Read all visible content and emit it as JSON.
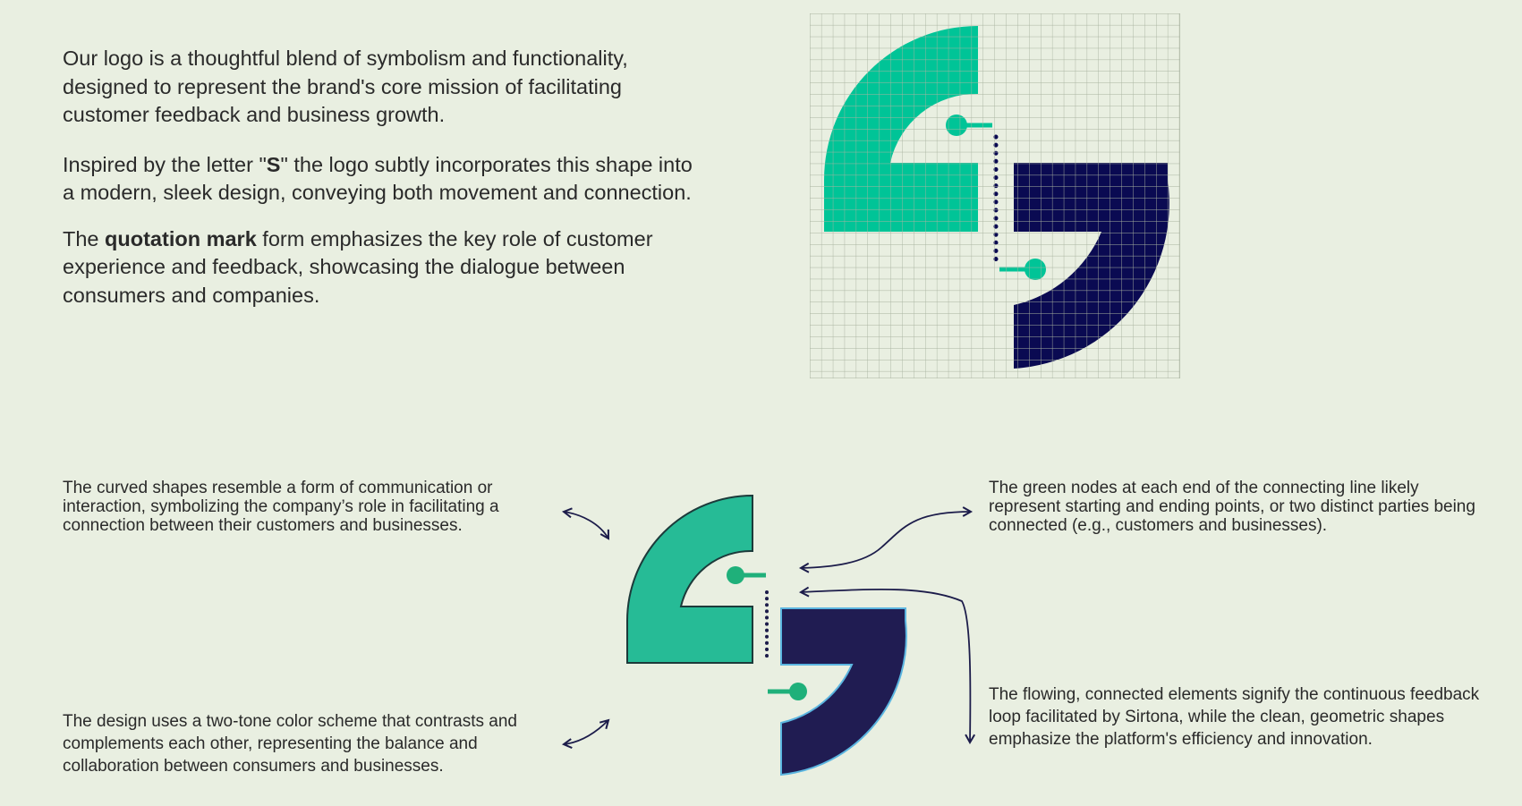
{
  "intro": {
    "p1": "Our logo is a thoughtful blend of symbolism and functionality, designed to represent the brand's core mission of facilitating customer feedback and business growth.",
    "p2_before": "Inspired by the letter \"",
    "p2_bold": "S",
    "p2_after": "\" the logo subtly incorporates this shape into a modern, sleek design, conveying both movement and connection.",
    "p3_before": "The ",
    "p3_bold": "quotation mark",
    "p3_after": " form emphasizes the key role of customer experience and feedback, showcasing the dialogue between consumers and companies."
  },
  "notes": {
    "curved_shapes": "The curved shapes resemble a form of communication or interaction, symbolizing the company’s role in facilitating a connection between their customers and businesses.",
    "green_nodes": "The green nodes at each end of the connecting line likely represent starting and ending points, or two distinct parties being connected (e.g., customers and businesses).",
    "two_tone": "The design uses a two-tone color scheme that contrasts and complements each other, representing the balance and collaboration between consumers and businesses.",
    "flowing": "The flowing, connected elements signify the continuous feedback loop facilitated by Sirtona, while the clean, geometric shapes emphasize the platform's efficiency and innovation."
  },
  "colors": {
    "background": "#e9efe1",
    "green": "#00c497",
    "green_soft": "#26bb96",
    "navy": "#0a0a52",
    "navy_soft": "#201c52",
    "node_green": "#1fb07a",
    "grid_line": "#a9b3a0"
  },
  "icons": {
    "logo": "quotation-s-logo-icon",
    "arrow": "curved-double-arrow-icon"
  }
}
